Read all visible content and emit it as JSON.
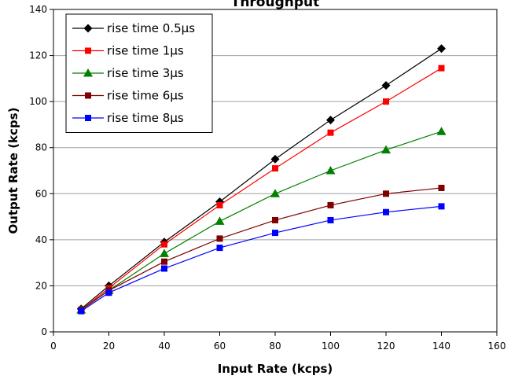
{
  "chart_data": {
    "type": "line",
    "title": "Throughput",
    "xlabel": "Input Rate (kcps)",
    "ylabel": "Output Rate (kcps)",
    "xlim": [
      0,
      160
    ],
    "ylim": [
      0,
      140
    ],
    "xticks": [
      0,
      20,
      40,
      60,
      80,
      100,
      120,
      140,
      160
    ],
    "yticks": [
      0,
      20,
      40,
      60,
      80,
      100,
      120,
      140
    ],
    "grid": "horizontal",
    "legend_position": "top-left",
    "x": [
      10,
      20,
      40,
      60,
      80,
      100,
      120,
      140
    ],
    "series": [
      {
        "name": "rise time 0.5µs",
        "color": "#000000",
        "marker": "diamond",
        "values": [
          10,
          20,
          39,
          56.5,
          75,
          92,
          107,
          123
        ]
      },
      {
        "name": "rise time 1µs",
        "color": "#ff0000",
        "marker": "square",
        "values": [
          9.5,
          19,
          38,
          55,
          71,
          86.5,
          100,
          114.5
        ]
      },
      {
        "name": "rise time 3µs",
        "color": "#008000",
        "marker": "triangle",
        "values": [
          9.5,
          18,
          34,
          48,
          60,
          70,
          79,
          87
        ]
      },
      {
        "name": "rise time 6µs",
        "color": "#800000",
        "marker": "square",
        "values": [
          9.5,
          18,
          30.5,
          40.5,
          48.5,
          55,
          60,
          62.5
        ]
      },
      {
        "name": "rise time 8µs",
        "color": "#0000ff",
        "marker": "square",
        "values": [
          9,
          17,
          27.5,
          36.5,
          43,
          48.5,
          52,
          54.5
        ]
      }
    ]
  }
}
